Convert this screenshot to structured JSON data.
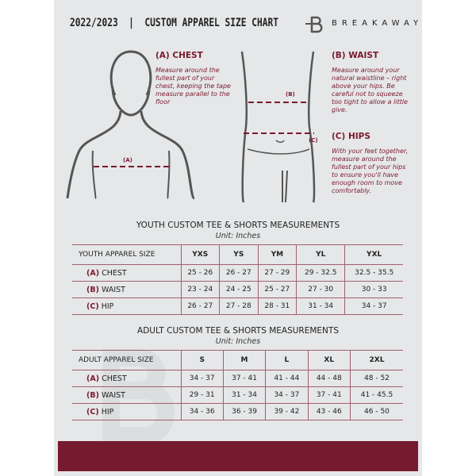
{
  "header": {
    "title": "2022/2023  |  CUSTOM APPAREL SIZE CHART",
    "brand": "BREAKAWAY"
  },
  "measures": {
    "chest": {
      "heading": "(A) CHEST",
      "text": "Measure around the fullest part of your chest, keeping the tape measure parallel to the floor",
      "marker": "(A)"
    },
    "waist": {
      "heading": "(B) WAIST",
      "text": "Measure around your natural waistline – right above your hips. Be careful not to squeeze too tight to allow a little give.",
      "marker": "(B)"
    },
    "hips": {
      "heading": "(C) HIPS",
      "text": "With your feet together, measure around the fullest part of your hips to ensure you'll have enough room to move comfortably.",
      "marker": "(C)"
    }
  },
  "colors": {
    "accent": "#7a1a2e",
    "panel": "#e6e7e8"
  },
  "youth": {
    "title": "YOUTH CUSTOM TEE & SHORTS MEASUREMENTS",
    "unit": "Unit: Inches",
    "header": "YOUTH APPAREL SIZE",
    "sizes": [
      "YXS",
      "YS",
      "YM",
      "YL",
      "YXL"
    ],
    "rows": [
      {
        "letter": "(A)",
        "name": "CHEST",
        "values": [
          "25 - 26",
          "26 - 27",
          "27 - 29",
          "29 - 32.5",
          "32.5 - 35.5"
        ]
      },
      {
        "letter": "(B)",
        "name": "WAIST",
        "values": [
          "23 - 24",
          "24 - 25",
          "25 - 27",
          "27 - 30",
          "30 - 33"
        ]
      },
      {
        "letter": "(C)",
        "name": "HIP",
        "values": [
          "26 - 27",
          "27 - 28",
          "28 - 31",
          "31 - 34",
          "34 - 37"
        ]
      }
    ]
  },
  "adult": {
    "title": "ADULT CUSTOM TEE & SHORTS MEASUREMENTS",
    "unit": "Unit: Inches",
    "header": "ADULT APPAREL SIZE",
    "sizes": [
      "S",
      "M",
      "L",
      "XL",
      "2XL"
    ],
    "rows": [
      {
        "letter": "(A)",
        "name": "CHEST",
        "values": [
          "34 - 37",
          "37 - 41",
          "41 - 44",
          "44 - 48",
          "48 - 52"
        ]
      },
      {
        "letter": "(B)",
        "name": "WAIST",
        "values": [
          "29 - 31",
          "31 - 34",
          "34 - 37",
          "37 - 41",
          "41 - 45.5"
        ]
      },
      {
        "letter": "(C)",
        "name": "HIP",
        "values": [
          "34 - 36",
          "36 - 39",
          "39 - 42",
          "43 - 46",
          "46 - 50"
        ]
      }
    ]
  }
}
